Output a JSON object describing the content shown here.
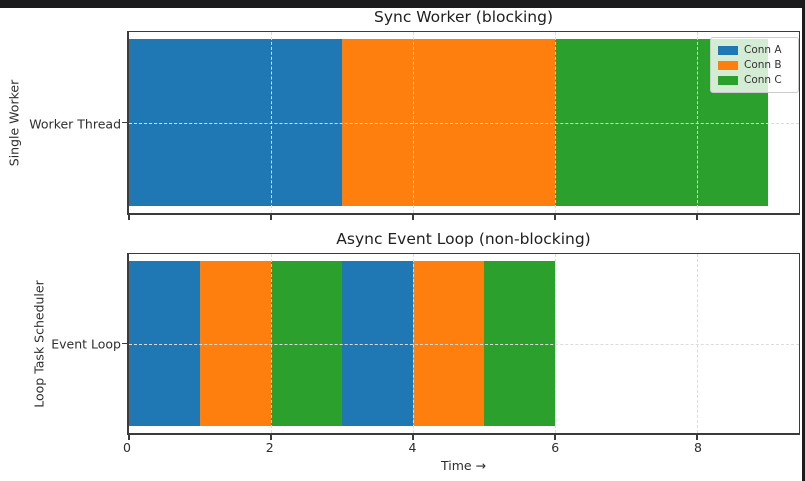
{
  "window": {
    "top_edge_color": "#1b1b1d",
    "right_edge_color": "#1b1b1d",
    "figure_background": "#ffffff"
  },
  "palette": {
    "conn_a": "#1f77b4",
    "conn_b": "#ff7f0e",
    "conn_c": "#2ca02c",
    "grid": "#dcdcdc",
    "spine": "#3b3b3b"
  },
  "chart_data": [
    {
      "type": "bar",
      "orientation": "horizontal",
      "title": "Sync Worker (blocking)",
      "ylabel": "Single Worker",
      "yticklabels": [
        "Worker Thread"
      ],
      "xlim": [
        0,
        9.43
      ],
      "xticks": [
        0,
        2,
        4,
        6,
        8
      ],
      "gridlines_x": [
        2,
        4,
        6,
        8
      ],
      "grid_style": "dashed",
      "segments": [
        {
          "series": "Conn A",
          "start": 0,
          "end": 3,
          "color": "#1f77b4"
        },
        {
          "series": "Conn B",
          "start": 3,
          "end": 6,
          "color": "#ff7f0e"
        },
        {
          "series": "Conn C",
          "start": 6,
          "end": 9,
          "color": "#2ca02c"
        }
      ],
      "legend": {
        "location": "upper right",
        "entries": [
          {
            "label": "Conn A",
            "color": "#1f77b4"
          },
          {
            "label": "Conn B",
            "color": "#ff7f0e"
          },
          {
            "label": "Conn C",
            "color": "#2ca02c"
          }
        ]
      }
    },
    {
      "type": "bar",
      "orientation": "horizontal",
      "title": "Async Event Loop (non-blocking)",
      "ylabel": "Loop Task Scheduler",
      "yticklabels": [
        "Event Loop"
      ],
      "xlabel": "Time →",
      "xlim": [
        0,
        9.43
      ],
      "xticks": [
        0,
        2,
        4,
        6,
        8
      ],
      "gridlines_x": [
        2,
        4,
        6,
        8
      ],
      "grid_style": "dashed",
      "segments": [
        {
          "series": "Conn A",
          "start": 0,
          "end": 1,
          "color": "#1f77b4"
        },
        {
          "series": "Conn B",
          "start": 1,
          "end": 2,
          "color": "#ff7f0e"
        },
        {
          "series": "Conn C",
          "start": 2,
          "end": 3,
          "color": "#2ca02c"
        },
        {
          "series": "Conn A",
          "start": 3,
          "end": 4,
          "color": "#1f77b4"
        },
        {
          "series": "Conn B",
          "start": 4,
          "end": 5,
          "color": "#ff7f0e"
        },
        {
          "series": "Conn C",
          "start": 5,
          "end": 6,
          "color": "#2ca02c"
        }
      ]
    }
  ]
}
